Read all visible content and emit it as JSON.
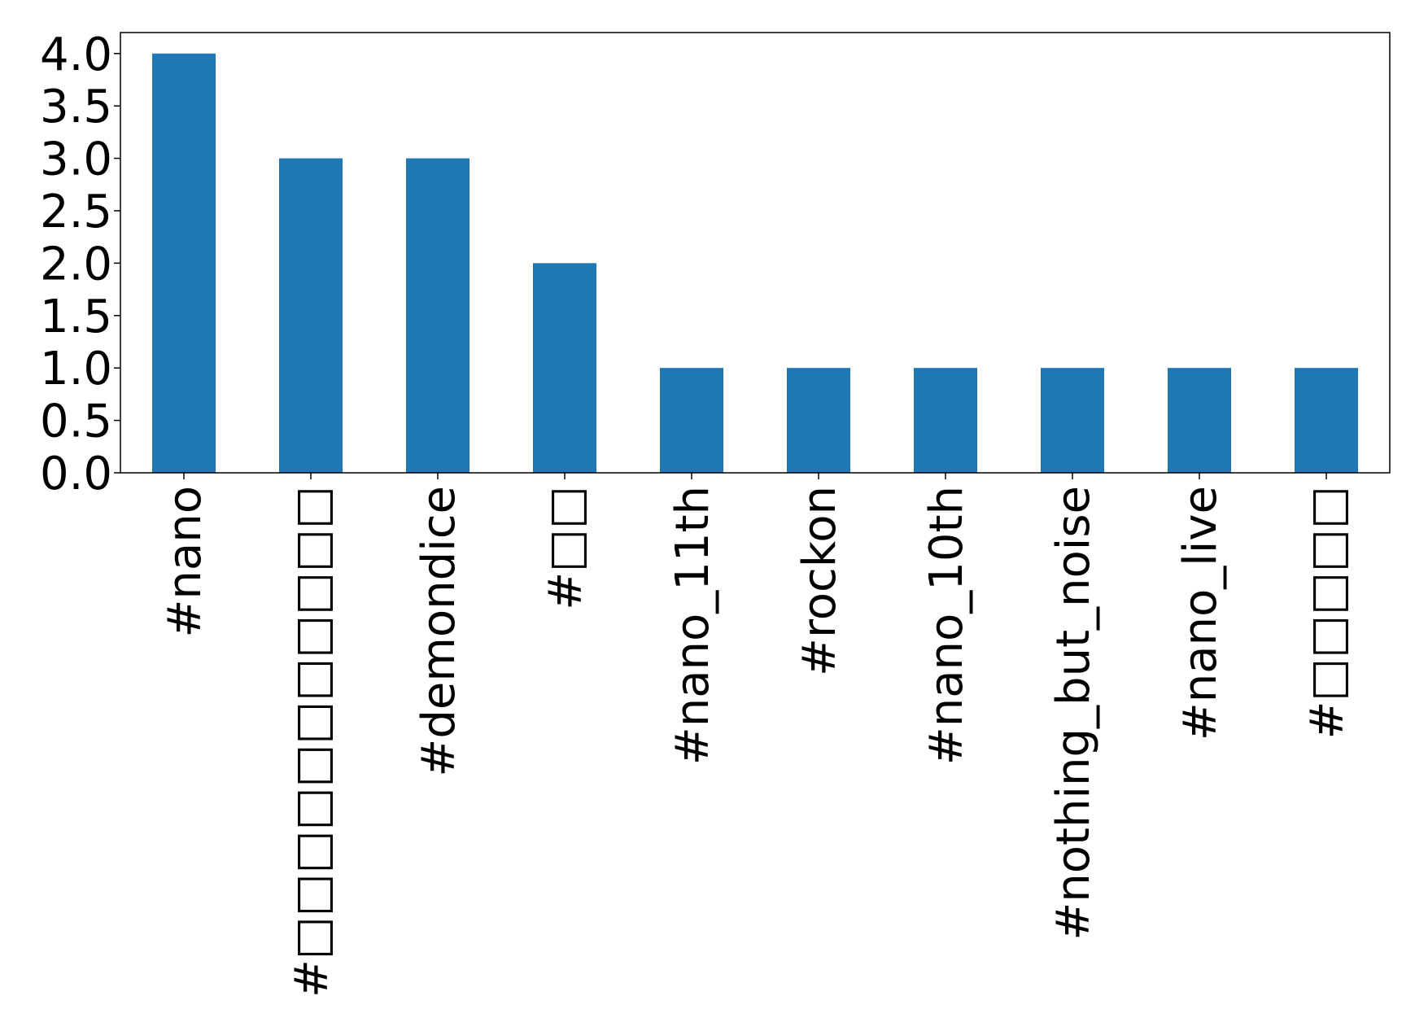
{
  "chart_data": {
    "type": "bar",
    "categories": [
      "#nano",
      "#□□□□□□□□□□□",
      "#demondice",
      "#□□",
      "#nano_11th",
      "#rockon",
      "#nano_10th",
      "#nothing_but_noise",
      "#nano_live",
      "#□□□□□"
    ],
    "values": [
      4,
      3,
      3,
      2,
      1,
      1,
      1,
      1,
      1,
      1
    ],
    "color": "#1f77b4",
    "ylim": [
      0,
      4.2
    ],
    "yticks": [
      {
        "value": 0,
        "label": "0.0"
      },
      {
        "value": 0.5,
        "label": "0.5"
      },
      {
        "value": 1,
        "label": "1.0"
      },
      {
        "value": 1.5,
        "label": "1.5"
      },
      {
        "value": 2,
        "label": "2.0"
      },
      {
        "value": 2.5,
        "label": "2.5"
      },
      {
        "value": 3,
        "label": "3.0"
      },
      {
        "value": 3.5,
        "label": "3.5"
      },
      {
        "value": 4,
        "label": "4.0"
      }
    ],
    "grid": false
  }
}
